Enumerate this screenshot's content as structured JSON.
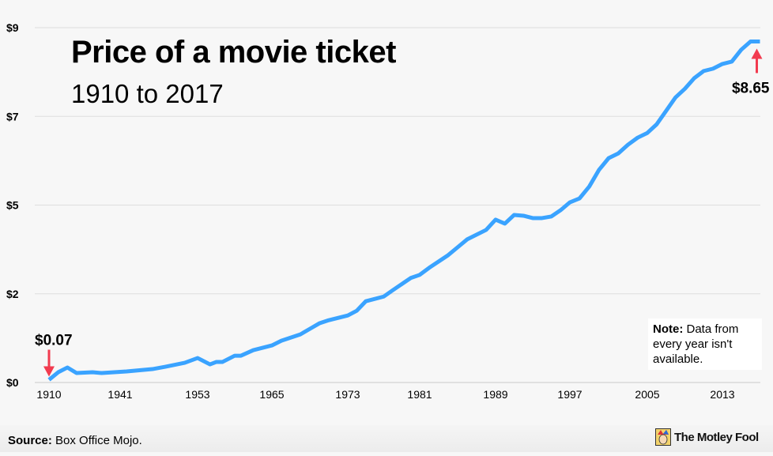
{
  "chart_data": {
    "type": "line",
    "title": "Price of a movie ticket",
    "subtitle": "1910 to 2017",
    "xlabel": "",
    "ylabel": "",
    "ylim": [
      0,
      9
    ],
    "y_ticks": [
      0,
      2.25,
      4.5,
      6.75,
      9
    ],
    "y_tick_labels": [
      "$0",
      "$2",
      "$5",
      "$7",
      "$9"
    ],
    "x_tick_labels": [
      "1910",
      "1941",
      "1953",
      "1965",
      "1973",
      "1981",
      "1989",
      "1997",
      "2005",
      "2013"
    ],
    "grid": "horizontal",
    "line_color": "#3aa3ff",
    "annotation_color": "#f23b4f",
    "annotations": [
      {
        "label": "$0.07",
        "year": 1910,
        "value": 0.07
      },
      {
        "label": "$8.65",
        "year": 2017,
        "value": 8.65
      }
    ],
    "series": [
      {
        "points": [
          [
            1910,
            0.07
          ],
          [
            1914,
            0.26
          ],
          [
            1918,
            0.38
          ],
          [
            1922,
            0.24
          ],
          [
            1929,
            0.26
          ],
          [
            1933,
            0.24
          ],
          [
            1942,
            0.28
          ],
          [
            1946,
            0.34
          ],
          [
            1948,
            0.4
          ],
          [
            1951,
            0.5
          ],
          [
            1953,
            0.62
          ],
          [
            1955,
            0.46
          ],
          [
            1956,
            0.52
          ],
          [
            1957,
            0.52
          ],
          [
            1959,
            0.68
          ],
          [
            1960,
            0.68
          ],
          [
            1962,
            0.82
          ],
          [
            1965,
            0.94
          ],
          [
            1966,
            1.06
          ],
          [
            1968,
            1.22
          ],
          [
            1969,
            1.36
          ],
          [
            1970,
            1.5
          ],
          [
            1971,
            1.58
          ],
          [
            1973,
            1.7
          ],
          [
            1974,
            1.82
          ],
          [
            1975,
            2.06
          ],
          [
            1977,
            2.18
          ],
          [
            1978,
            2.34
          ],
          [
            1980,
            2.65
          ],
          [
            1981,
            2.73
          ],
          [
            1982,
            2.91
          ],
          [
            1984,
            3.23
          ],
          [
            1985,
            3.43
          ],
          [
            1986,
            3.63
          ],
          [
            1988,
            3.87
          ],
          [
            1989,
            4.13
          ],
          [
            1990,
            4.03
          ],
          [
            1991,
            4.25
          ],
          [
            1992,
            4.23
          ],
          [
            1993,
            4.17
          ],
          [
            1994,
            4.17
          ],
          [
            1995,
            4.21
          ],
          [
            1996,
            4.37
          ],
          [
            1997,
            4.57
          ],
          [
            1998,
            4.67
          ],
          [
            1999,
            4.97
          ],
          [
            2000,
            5.39
          ],
          [
            2001,
            5.69
          ],
          [
            2002,
            5.81
          ],
          [
            2003,
            6.03
          ],
          [
            2004,
            6.21
          ],
          [
            2005,
            6.33
          ],
          [
            2006,
            6.55
          ],
          [
            2007,
            6.89
          ],
          [
            2008,
            7.23
          ],
          [
            2009,
            7.45
          ],
          [
            2010,
            7.72
          ],
          [
            2011,
            7.9
          ],
          [
            2012,
            7.96
          ],
          [
            2013,
            8.08
          ],
          [
            2014,
            8.14
          ],
          [
            2015,
            8.44
          ],
          [
            2016,
            8.65
          ],
          [
            2017,
            8.65
          ]
        ]
      }
    ]
  },
  "note": {
    "bold": "Note:",
    "text": " Data from every year isn't available."
  },
  "footer": {
    "source_label": "Source:",
    "source_text": " Box Office Mojo.",
    "logo_text": "The Motley Fool"
  }
}
